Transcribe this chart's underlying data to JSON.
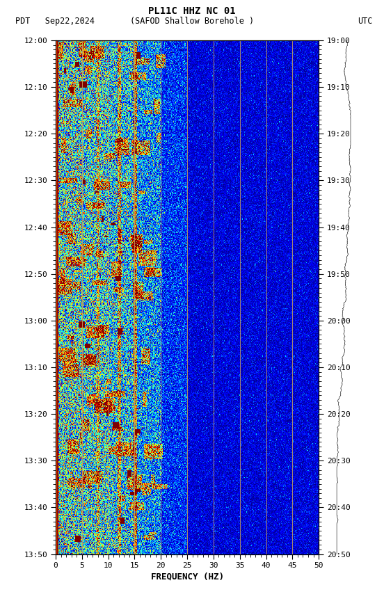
{
  "title_line1": "PL11C HHZ NC 01",
  "title_line2_left": "PDT   Sep22,2024      (SAFOD Shallow Borehole )",
  "title_line2_right": "UTC",
  "left_time_labels": [
    "12:00",
    "12:10",
    "12:20",
    "12:30",
    "12:40",
    "12:50",
    "13:00",
    "13:10",
    "13:20",
    "13:30",
    "13:40",
    "13:50"
  ],
  "right_time_labels": [
    "19:00",
    "19:10",
    "19:20",
    "19:30",
    "19:40",
    "19:50",
    "20:00",
    "20:10",
    "20:20",
    "20:30",
    "20:40",
    "20:50"
  ],
  "xlabel": "FREQUENCY (HZ)",
  "freq_min": 0,
  "freq_max": 50,
  "freq_ticks": [
    0,
    5,
    10,
    15,
    20,
    25,
    30,
    35,
    40,
    45,
    50
  ],
  "freq_gridlines": [
    5,
    10,
    15,
    20,
    25,
    30,
    35,
    40,
    45
  ],
  "n_time_steps": 660,
  "n_freq_bins": 500,
  "background_color": "#ffffff",
  "colormap": "jet",
  "gridline_color": "#C8A060",
  "left_border_color": "#FF4500",
  "vmin": 0.0,
  "vmax": 0.55
}
